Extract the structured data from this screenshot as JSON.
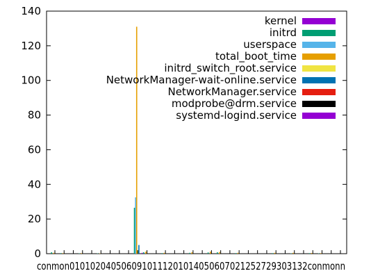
{
  "chart_data": {
    "type": "bar",
    "ylim": [
      0,
      140
    ],
    "yticks": [
      "0",
      "20",
      "40",
      "60",
      "80",
      "100",
      "120",
      "140"
    ],
    "xtick_text": "conmon0101020405060910111201014050607021252729303132conmonn",
    "legend_position": "top-right",
    "series": [
      {
        "name": "kernel",
        "color": "#9400d3"
      },
      {
        "name": "initrd",
        "color": "#009e73"
      },
      {
        "name": "userspace",
        "color": "#56b4e9"
      },
      {
        "name": "total_boot_time",
        "color": "#e69f00"
      },
      {
        "name": "initrd_switch_root.service",
        "color": "#f0e442"
      },
      {
        "name": "NetworkManager-wait-online.service",
        "color": "#0072b2"
      },
      {
        "name": "NetworkManager.service",
        "color": "#e51e10"
      },
      {
        "name": "modprobe@drm.service",
        "color": "#000000"
      },
      {
        "name": "systemd-logind.service",
        "color": "#9400d3"
      }
    ],
    "bar_groups": [
      {
        "index": 0,
        "values": [
          0,
          0.8,
          0,
          0.5,
          0,
          0,
          0,
          0,
          0
        ]
      },
      {
        "index": 1,
        "values": [
          0,
          0.3,
          0,
          0.3,
          0,
          0,
          0,
          0,
          0
        ]
      },
      {
        "index": 3,
        "values": [
          0,
          0.2,
          0,
          0.3,
          0,
          0,
          0,
          0,
          0
        ]
      },
      {
        "index": 5,
        "values": [
          0,
          0.2,
          0,
          0.2,
          0,
          0,
          0,
          0,
          0
        ]
      },
      {
        "index": 9,
        "values": [
          0,
          26.5,
          32.5,
          131,
          2,
          5,
          0,
          0,
          0.5
        ]
      },
      {
        "index": 10,
        "values": [
          0,
          0.8,
          0,
          1.2,
          0,
          0,
          0,
          0,
          0
        ]
      },
      {
        "index": 12,
        "values": [
          0,
          0.3,
          0,
          0.5,
          0,
          0,
          0,
          0,
          0
        ]
      },
      {
        "index": 15,
        "values": [
          0,
          0.5,
          0,
          0.8,
          0,
          0,
          0,
          0,
          0
        ]
      },
      {
        "index": 17,
        "values": [
          0,
          0.7,
          0,
          1.2,
          0,
          0,
          0,
          0,
          0
        ]
      },
      {
        "index": 18,
        "values": [
          0,
          0.8,
          0,
          1,
          0,
          0,
          0,
          0,
          0
        ]
      },
      {
        "index": 20,
        "values": [
          0,
          0.3,
          0,
          0.5,
          0,
          0,
          0,
          0,
          0
        ]
      },
      {
        "index": 24,
        "values": [
          0,
          0.3,
          0,
          0.5,
          0,
          0,
          0,
          0,
          0
        ]
      },
      {
        "index": 26,
        "values": [
          0,
          0.2,
          0,
          0.5,
          0,
          0,
          0,
          0,
          0
        ]
      },
      {
        "index": 28,
        "values": [
          0,
          0.3,
          0,
          0.4,
          0,
          0,
          0,
          0,
          0
        ]
      },
      {
        "index": 29,
        "values": [
          0,
          0.2,
          0,
          0.3,
          0,
          0,
          0,
          0,
          0
        ]
      }
    ]
  }
}
